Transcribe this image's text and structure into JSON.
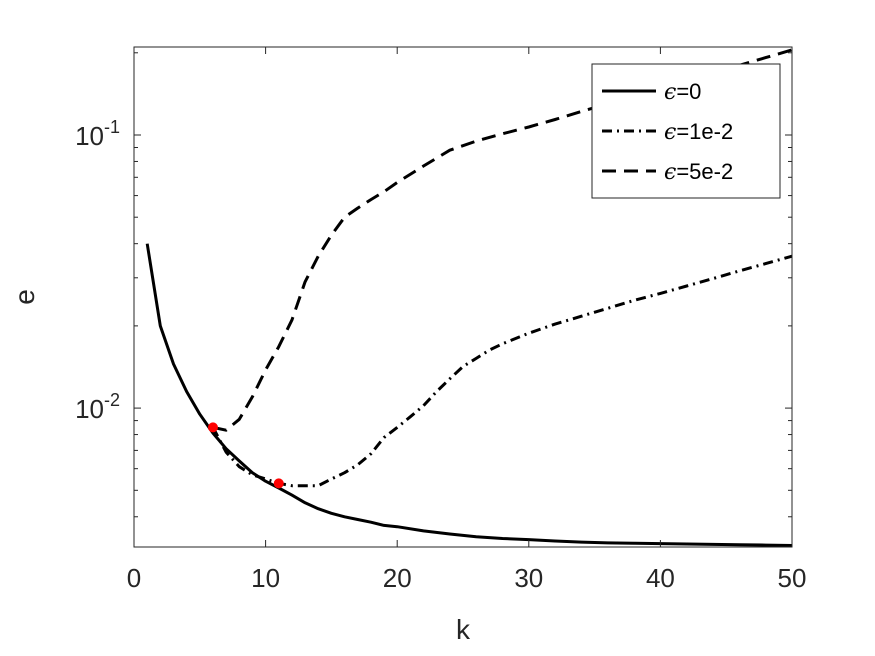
{
  "chart_data": {
    "type": "line",
    "xlabel": "k",
    "ylabel": "e",
    "xlim": [
      0,
      50
    ],
    "ylim": [
      0.0031,
      0.21
    ],
    "yscale": "log",
    "grid": false,
    "legend_position": "top-right",
    "xticks": [
      0,
      10,
      20,
      30,
      40,
      50
    ],
    "yticks": [
      {
        "value": 0.01,
        "base": "10",
        "exp": "-2"
      },
      {
        "value": 0.1,
        "base": "10",
        "exp": "-1"
      }
    ],
    "series": [
      {
        "name": "ϵ=0",
        "symbol": "ϵ",
        "suffix": "=0",
        "style": "solid",
        "x": [
          1,
          2,
          3,
          4,
          5,
          6,
          7,
          8,
          9,
          10,
          11,
          12,
          13,
          14,
          15,
          16,
          17,
          18,
          19,
          20,
          22,
          24,
          26,
          28,
          30,
          32,
          34,
          36,
          38,
          40,
          42,
          44,
          46,
          48,
          50
        ],
        "y": [
          0.04,
          0.02,
          0.0145,
          0.0115,
          0.0095,
          0.0081,
          0.0071,
          0.0064,
          0.0058,
          0.0054,
          0.0051,
          0.0048,
          0.0045,
          0.00428,
          0.00412,
          0.004,
          0.00391,
          0.00382,
          0.00372,
          0.00368,
          0.00355,
          0.00346,
          0.00338,
          0.00333,
          0.0033,
          0.00326,
          0.00323,
          0.00321,
          0.0032,
          0.00319,
          0.00318,
          0.00317,
          0.00316,
          0.00315,
          0.00314
        ]
      },
      {
        "name": "ϵ=1e-2",
        "symbol": "ϵ",
        "suffix": "=1e-2",
        "style": "dashdot",
        "x": [
          6,
          7,
          8,
          9,
          10,
          11,
          12,
          13,
          14,
          15,
          16,
          17,
          18,
          19,
          20,
          21,
          22,
          23,
          24,
          25,
          26,
          27,
          28,
          30,
          32,
          34,
          36,
          38,
          40,
          42,
          44,
          46,
          48,
          50
        ],
        "y": [
          0.0085,
          0.0069,
          0.0061,
          0.0057,
          0.0055,
          0.0053,
          0.0052,
          0.0052,
          0.0052,
          0.0055,
          0.0058,
          0.0062,
          0.0068,
          0.0078,
          0.0085,
          0.0093,
          0.0102,
          0.0115,
          0.0128,
          0.0142,
          0.0152,
          0.0163,
          0.0172,
          0.0188,
          0.0203,
          0.0217,
          0.0232,
          0.0248,
          0.0263,
          0.028,
          0.0298,
          0.0318,
          0.0338,
          0.036
        ]
      },
      {
        "name": "ϵ=5e-2",
        "symbol": "ϵ",
        "suffix": "=5e-2",
        "style": "dashed",
        "x": [
          6,
          7,
          8,
          9,
          10,
          11,
          12,
          13,
          14,
          15,
          16,
          17,
          18,
          19,
          20,
          22,
          24,
          26,
          28,
          30,
          32,
          34,
          36,
          38,
          40,
          42,
          44,
          46,
          48,
          50
        ],
        "y": [
          0.0085,
          0.0083,
          0.0091,
          0.011,
          0.0138,
          0.0168,
          0.021,
          0.029,
          0.036,
          0.043,
          0.05,
          0.054,
          0.058,
          0.062,
          0.067,
          0.077,
          0.088,
          0.095,
          0.101,
          0.107,
          0.114,
          0.122,
          0.13,
          0.139,
          0.149,
          0.159,
          0.169,
          0.18,
          0.192,
          0.205
        ]
      }
    ],
    "markers": [
      {
        "x": 6,
        "y": 0.0085,
        "color": "#ff0000"
      },
      {
        "x": 11,
        "y": 0.0053,
        "color": "#ff0000"
      }
    ],
    "line_color": "#000000",
    "axes_color": "#262626"
  }
}
